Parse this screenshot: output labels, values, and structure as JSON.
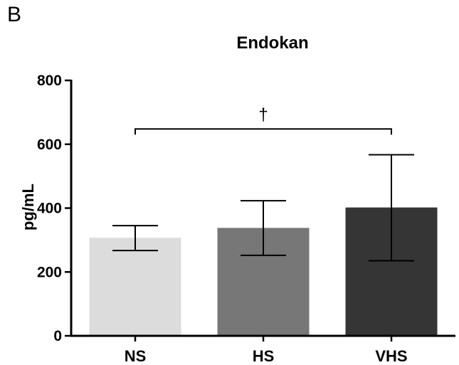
{
  "panel_label": "B",
  "chart_data": {
    "type": "bar",
    "title": "Endokan",
    "xlabel": "",
    "ylabel": "pg/mL",
    "categories": [
      "NS",
      "HS",
      "VHS"
    ],
    "values": [
      307,
      338,
      402
    ],
    "error_low": [
      267,
      252,
      235
    ],
    "error_high": [
      345,
      423,
      567
    ],
    "bar_colors": [
      "#dcdcdc",
      "#777777",
      "#353535"
    ],
    "ylim": [
      0,
      800
    ],
    "yticks": [
      0,
      200,
      400,
      600,
      800
    ],
    "significance": {
      "symbol": "†",
      "from": "NS",
      "to": "VHS",
      "level": 648
    },
    "grid": false,
    "legend": "none"
  }
}
